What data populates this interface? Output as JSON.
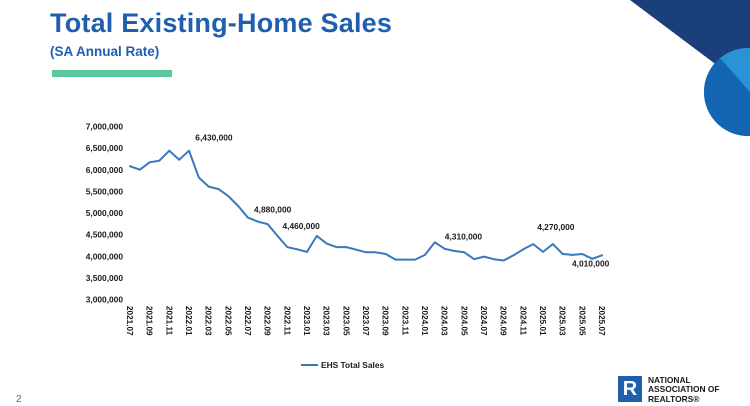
{
  "header": {
    "title": "Total Existing-Home Sales",
    "subtitle": "(SA Annual Rate)"
  },
  "slide": {
    "page_number": "2"
  },
  "logo": {
    "mark": "R",
    "line1": "NATIONAL",
    "line2": "ASSOCIATION OF",
    "line3": "REALTORS®"
  },
  "colors": {
    "title": "#1f5fae",
    "accent": "#5ac89a",
    "series_line": "#3a78be",
    "corner_dark": "#1b3f7a",
    "corner_mid": "#1565b5",
    "corner_light": "#2a93d5"
  },
  "chart_data": {
    "type": "line",
    "title": "",
    "xlabel": "",
    "ylabel": "",
    "ylim": [
      3000000,
      7000000
    ],
    "yticks": [
      "3,000,000",
      "3,500,000",
      "4,000,000",
      "4,500,000",
      "5,000,000",
      "5,500,000",
      "6,000,000",
      "6,500,000",
      "7,000,000"
    ],
    "x": [
      "2021.07",
      "2021.08",
      "2021.09",
      "2021.10",
      "2021.11",
      "2021.12",
      "2022.01",
      "2022.02",
      "2022.03",
      "2022.04",
      "2022.05",
      "2022.06",
      "2022.07",
      "2022.08",
      "2022.09",
      "2022.10",
      "2022.11",
      "2022.12",
      "2023.01",
      "2023.02",
      "2023.03",
      "2023.04",
      "2023.05",
      "2023.06",
      "2023.07",
      "2023.08",
      "2023.09",
      "2023.10",
      "2023.11",
      "2023.12",
      "2024.01",
      "2024.02",
      "2024.03",
      "2024.04",
      "2024.05",
      "2024.06",
      "2024.07",
      "2024.08",
      "2024.09",
      "2024.10",
      "2024.11",
      "2024.12",
      "2025.01",
      "2025.02",
      "2025.03",
      "2025.04",
      "2025.05",
      "2025.06",
      "2025.07"
    ],
    "xtick_labels": [
      "2021.07",
      "2021.09",
      "2021.11",
      "2022.01",
      "2022.03",
      "2022.05",
      "2022.07",
      "2022.09",
      "2022.11",
      "2023.01",
      "2023.03",
      "2023.05",
      "2023.07",
      "2023.09",
      "2023.11",
      "2024.01",
      "2024.03",
      "2024.05",
      "2024.07",
      "2024.09",
      "2024.11",
      "2025.01",
      "2025.03",
      "2025.05",
      "2025.07"
    ],
    "series": [
      {
        "name": "EHS Total Sales",
        "values": [
          6070000,
          5990000,
          6160000,
          6200000,
          6430000,
          6220000,
          6430000,
          5810000,
          5600000,
          5540000,
          5380000,
          5150000,
          4880000,
          4790000,
          4730000,
          4460000,
          4200000,
          4150000,
          4090000,
          4460000,
          4280000,
          4200000,
          4200000,
          4140000,
          4080000,
          4080000,
          4040000,
          3910000,
          3910000,
          3910000,
          4020000,
          4310000,
          4160000,
          4110000,
          4080000,
          3920000,
          3980000,
          3920000,
          3890000,
          4010000,
          4150000,
          4270000,
          4090000,
          4270000,
          4040000,
          4020000,
          4040000,
          3930000,
          4010000
        ]
      }
    ],
    "annotations": [
      {
        "x": "2021.11",
        "label": "6,430,000"
      },
      {
        "x": "2022.07",
        "label": "4,880,000"
      },
      {
        "x": "2022.10",
        "label": "4,460,000"
      },
      {
        "x": "2024.02",
        "label": "4,310,000"
      },
      {
        "x": "2024.12",
        "label": "4,270,000"
      },
      {
        "x": "2025.07",
        "label": "4,010,000"
      }
    ],
    "legend": {
      "position": "bottom"
    },
    "grid": false
  }
}
